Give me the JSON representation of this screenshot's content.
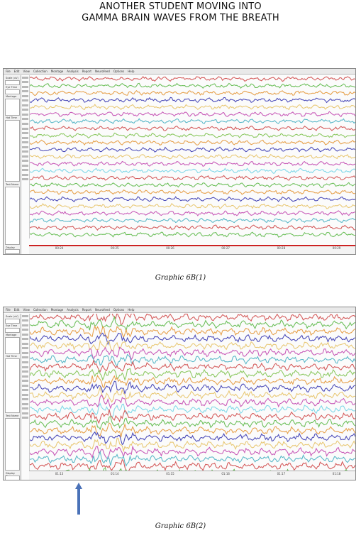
{
  "header": {
    "line1": "ANOTHER STUDENT MOVING INTO",
    "line2": "GAMMA BRAIN WAVES FROM THE BREATH"
  },
  "figures": [
    {
      "caption": "Graphic 6B(1)",
      "menu": [
        "File",
        "Edit",
        "View",
        "Collection",
        "Montage",
        "Analysis",
        "Report",
        "Neurofeed",
        "Options",
        "Help"
      ],
      "panel_labels": [
        "Scale (uV)",
        "Eye Time",
        "Montage",
        "Hot Time",
        "Test Name",
        "Display Time"
      ],
      "time_ticks": [
        "00:24",
        "00:25",
        "00:26",
        "00:27",
        "00:28",
        "00:29"
      ],
      "channel_colors": [
        "#d45a5a",
        "#6bbf59",
        "#e6a04a",
        "#4a4ab8",
        "#e8c874",
        "#c85ab8",
        "#5ab8c8",
        "#d45a5a",
        "#8bc860",
        "#e6a04a",
        "#4a4ab8",
        "#e8c874",
        "#c85ab8",
        "#7fd8e8",
        "#d45a5a",
        "#6bbf59",
        "#e6a04a",
        "#4a4ab8",
        "#e8c874",
        "#c85ab8",
        "#5ab8c8",
        "#d45a5a",
        "#6bbf59"
      ],
      "amplitude": 0.55
    },
    {
      "caption": "Graphic 6B(2)",
      "menu": [
        "File",
        "Edit",
        "View",
        "Collection",
        "Montage",
        "Analysis",
        "Report",
        "Neurofeed",
        "Options",
        "Help"
      ],
      "panel_labels": [
        "Scale (uV)",
        "Eye Time",
        "Montage",
        "Hot Time",
        "Test Name",
        "Display Time"
      ],
      "time_ticks": [
        "01:13",
        "01:14",
        "01:15",
        "01:16",
        "01:17",
        "01:18"
      ],
      "channel_colors": [
        "#d45a5a",
        "#6bbf59",
        "#e6a04a",
        "#4a4ab8",
        "#e8c874",
        "#c85ab8",
        "#5ab8c8",
        "#d45a5a",
        "#8bc860",
        "#e6a04a",
        "#4a4ab8",
        "#e8c874",
        "#c85ab8",
        "#7fd8e8",
        "#d45a5a",
        "#6bbf59",
        "#e6a04a",
        "#4a4ab8",
        "#e8c874",
        "#c85ab8",
        "#5ab8c8",
        "#d45a5a",
        "#6bbf59"
      ],
      "amplitude": 0.9
    }
  ],
  "annotation": {
    "arrow_color": "#4a72b8",
    "arrow_icon": "up-arrow-icon"
  }
}
